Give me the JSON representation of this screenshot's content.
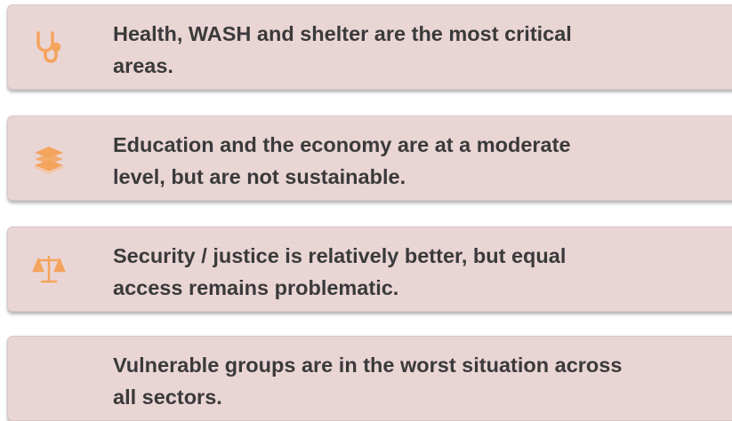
{
  "items": [
    {
      "icon": "stethoscope",
      "lines": [
        "Health, WASH and shelter are the most critical",
        "areas."
      ]
    },
    {
      "icon": "books",
      "lines": [
        "Education and the economy are at a moderate",
        "level, but are not sustainable."
      ]
    },
    {
      "icon": "scales",
      "lines": [
        "Security / justice is relatively better, but equal",
        "access remains problematic."
      ]
    },
    {
      "icon": null,
      "lines": [
        "Vulnerable groups are in the worst situation across",
        "all sectors."
      ]
    }
  ]
}
